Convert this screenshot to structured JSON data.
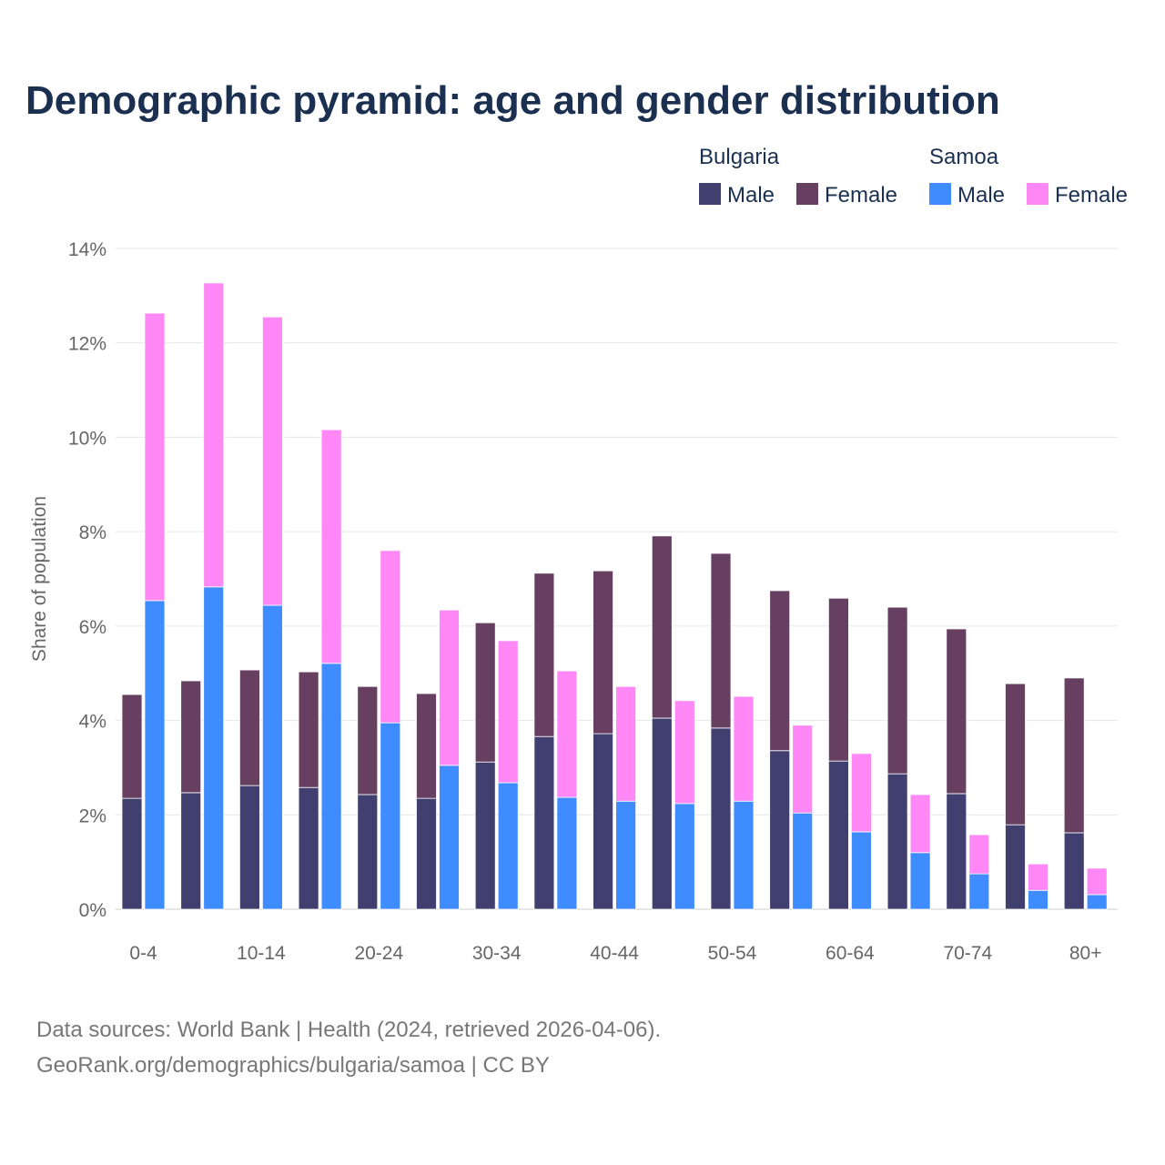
{
  "chart_data": {
    "type": "bar",
    "title": "Demographic pyramid: age and gender distribution",
    "xlabel": "",
    "ylabel": "Share of population",
    "ylim": [
      0,
      14
    ],
    "yticks": [
      "0%",
      "2%",
      "4%",
      "6%",
      "8%",
      "10%",
      "12%",
      "14%"
    ],
    "grid": true,
    "legend_position": "top-right",
    "categories": [
      "0-4",
      "5-9",
      "10-14",
      "15-19",
      "20-24",
      "25-29",
      "30-34",
      "35-39",
      "40-44",
      "45-49",
      "50-54",
      "55-59",
      "60-64",
      "65-69",
      "70-74",
      "75-79",
      "80+"
    ],
    "xtick_labels": [
      "0-4",
      "10-14",
      "20-24",
      "30-34",
      "40-44",
      "50-54",
      "60-64",
      "70-74",
      "80+"
    ],
    "groups": [
      {
        "name": "Bulgaria",
        "series": [
          {
            "name": "Male",
            "color": "#403f6f",
            "values": [
              2.35,
              2.47,
              2.62,
              2.58,
              2.43,
              2.35,
              3.12,
              3.66,
              3.72,
              4.05,
              3.84,
              3.36,
              3.14,
              2.87,
              2.45,
              1.79,
              1.62
            ]
          },
          {
            "name": "Female",
            "color": "#673f61",
            "values": [
              2.2,
              2.37,
              2.45,
              2.45,
              2.29,
              2.22,
              2.95,
              3.46,
              3.45,
              3.86,
              3.7,
              3.39,
              3.45,
              3.53,
              3.49,
              2.99,
              3.28
            ]
          }
        ]
      },
      {
        "name": "Samoa",
        "series": [
          {
            "name": "Male",
            "color": "#3e8cff",
            "values": [
              6.54,
              6.83,
              6.44,
              5.21,
              3.95,
              3.05,
              2.68,
              2.37,
              2.29,
              2.24,
              2.29,
              2.04,
              1.64,
              1.2,
              0.75,
              0.4,
              0.31
            ]
          },
          {
            "name": "Female",
            "color": "#ff88f6",
            "values": [
              6.09,
              6.44,
              6.11,
              4.95,
              3.65,
              3.29,
              3.01,
              2.68,
              2.43,
              2.18,
              2.22,
              1.86,
              1.66,
              1.23,
              0.83,
              0.56,
              0.56
            ]
          }
        ]
      }
    ]
  },
  "footer": {
    "line1": "Data sources: World Bank | Health (2024, retrieved 2026-04-06).",
    "line2": "GeoRank.org/demographics/bulgaria/samoa | CC BY"
  }
}
